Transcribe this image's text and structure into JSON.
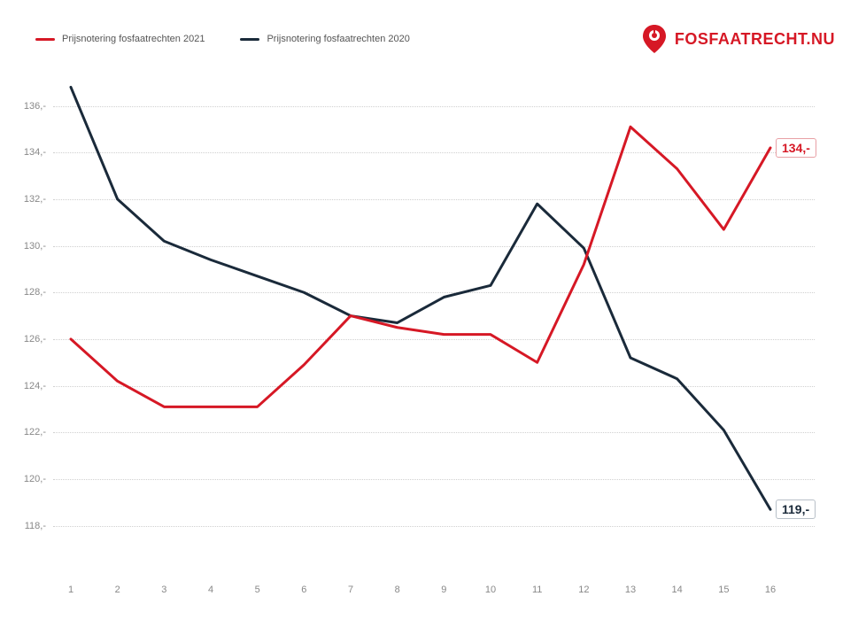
{
  "legend": {
    "series_2021": {
      "label": "Prijsnotering fosfaatrechten 2021",
      "color": "#d61825"
    },
    "series_2020": {
      "label": "Prijsnotering fosfaatrechten 2020",
      "color": "#1a2a3a"
    }
  },
  "brand": {
    "name": "FOSFAATRECHT.NU",
    "icon_color": "#d61825"
  },
  "chart": {
    "type": "line",
    "background_color": "#ffffff",
    "grid_color": "#d0d0d0",
    "grid_style": "dotted",
    "label_color": "#888888",
    "label_fontsize": 11,
    "line_width": 3,
    "ylim": [
      117,
      137.5
    ],
    "yticks": [
      118,
      120,
      122,
      124,
      126,
      128,
      130,
      132,
      134,
      136
    ],
    "ytick_labels": [
      "118,-",
      "120,-",
      "122,-",
      "124,-",
      "126,-",
      "128,-",
      "130,-",
      "132,-",
      "134,-",
      "136,-"
    ],
    "xlim": [
      1,
      16
    ],
    "xticks": [
      1,
      2,
      3,
      4,
      5,
      6,
      7,
      8,
      9,
      10,
      11,
      12,
      13,
      14,
      15,
      16
    ],
    "xtick_labels": [
      "1",
      "2",
      "3",
      "4",
      "5",
      "6",
      "7",
      "8",
      "9",
      "10",
      "11",
      "12",
      "13",
      "14",
      "15",
      "16"
    ],
    "series": {
      "s2021": {
        "name": "2021",
        "color": "#d61825",
        "x": [
          1,
          2,
          3,
          4,
          5,
          6,
          7,
          8,
          9,
          10,
          11,
          12,
          13,
          14,
          15,
          16
        ],
        "y": [
          126.0,
          124.2,
          123.1,
          123.1,
          123.1,
          124.9,
          127.0,
          126.5,
          126.2,
          126.2,
          125.0,
          129.2,
          135.1,
          133.3,
          130.7,
          134.2
        ],
        "end_label": "134,-",
        "end_label_color": "#d61825"
      },
      "s2020": {
        "name": "2020",
        "color": "#1a2a3a",
        "x": [
          1,
          2,
          3,
          4,
          5,
          6,
          7,
          8,
          9,
          10,
          11,
          12,
          13,
          14,
          15,
          16
        ],
        "y": [
          136.8,
          132.0,
          130.2,
          129.4,
          128.7,
          128.0,
          127.0,
          126.7,
          127.8,
          128.3,
          131.8,
          129.9,
          125.2,
          124.3,
          122.1,
          118.7
        ],
        "end_label": "119,-",
        "end_label_color": "#1a2a3a"
      }
    }
  }
}
